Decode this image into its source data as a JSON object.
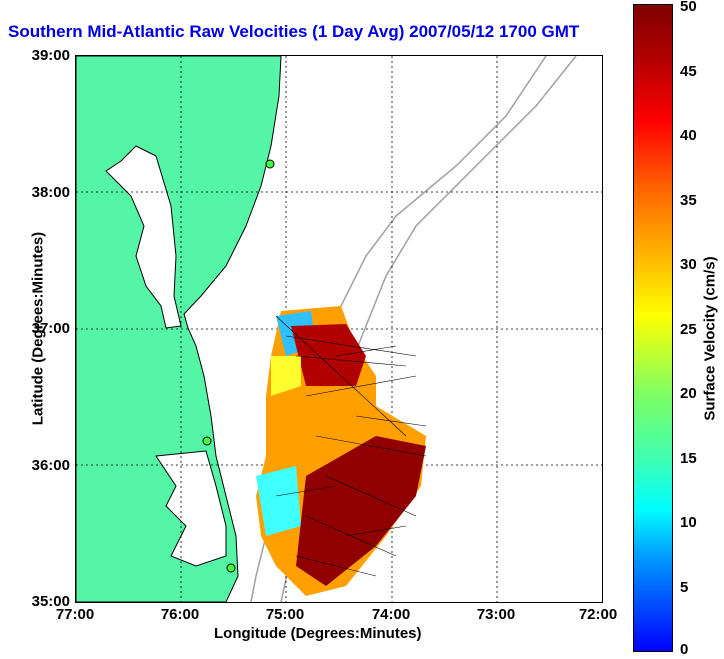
{
  "title": "Southern Mid-Atlantic Raw Velocities (1 Day Avg) 2007/05/12 1700 GMT",
  "axes": {
    "xlabel": "Longitude (Degrees:Minutes)",
    "ylabel": "Latitude (Degrees:Minutes)",
    "xticks": [
      "77:00",
      "76:00",
      "75:00",
      "74:00",
      "73:00",
      "72:00"
    ],
    "yticks": [
      "39:00",
      "38:00",
      "37:00",
      "36:00",
      "35:00"
    ],
    "grid": true
  },
  "colorbar": {
    "label": "Surface Velocity (cm/s)",
    "ticks": [
      "50",
      "45",
      "40",
      "35",
      "30",
      "25",
      "20",
      "15",
      "10",
      "5",
      "0"
    ],
    "range": [
      0,
      50
    ]
  },
  "colors": {
    "land": "#55f5a8",
    "coast": "#000000",
    "bathymetry": "#a0a0a0",
    "title": "#0000e0"
  }
}
